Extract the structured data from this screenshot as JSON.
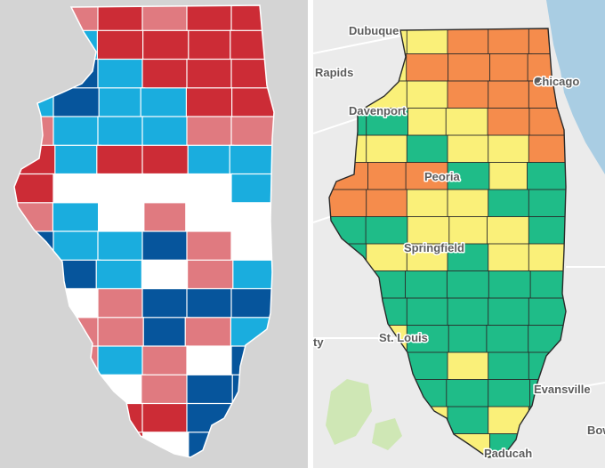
{
  "colors": {
    "panel_left_bg": "#d4d4d4",
    "panel_right_bg": "#ebebeb",
    "lake_michigan": "#a9cde3",
    "left_legend_categories": {
      "dark_red": "#cc2c36",
      "light_red": "#e07a80",
      "white": "#ffffff",
      "light_blue": "#1aadde",
      "dark_blue": "#06559c"
    },
    "right_levels": {
      "green": "#1fbc88",
      "yellow": "#faf079",
      "orange": "#f58c4c"
    }
  },
  "left_map": {
    "region": "Illinois",
    "counties": [
      {
        "fill": "dark_blue"
      },
      {
        "fill": "light_red"
      },
      {
        "fill": "dark_red"
      },
      {
        "fill": "light_red"
      },
      {
        "fill": "dark_red"
      },
      {
        "fill": "dark_red"
      },
      {
        "fill": "dark_blue"
      },
      {
        "fill": "light_blue"
      },
      {
        "fill": "dark_red"
      },
      {
        "fill": "dark_red"
      },
      {
        "fill": "dark_red"
      },
      {
        "fill": "dark_red"
      },
      {
        "fill": "white"
      },
      {
        "fill": "dark_blue"
      },
      {
        "fill": "light_blue"
      },
      {
        "fill": "dark_red"
      },
      {
        "fill": "dark_red"
      },
      {
        "fill": "dark_red"
      },
      {
        "fill": "light_blue"
      },
      {
        "fill": "dark_blue"
      },
      {
        "fill": "light_blue"
      },
      {
        "fill": "light_blue"
      },
      {
        "fill": "dark_red"
      },
      {
        "fill": "dark_red"
      },
      {
        "fill": "light_red"
      },
      {
        "fill": "light_blue"
      },
      {
        "fill": "light_blue"
      },
      {
        "fill": "light_blue"
      },
      {
        "fill": "light_red"
      },
      {
        "fill": "light_red"
      },
      {
        "fill": "dark_red"
      },
      {
        "fill": "light_blue"
      },
      {
        "fill": "dark_red"
      },
      {
        "fill": "dark_red"
      },
      {
        "fill": "light_blue"
      },
      {
        "fill": "light_blue"
      },
      {
        "fill": "dark_red"
      },
      {
        "fill": "white"
      },
      {
        "fill": "white"
      },
      {
        "fill": "white"
      },
      {
        "fill": "white"
      },
      {
        "fill": "light_blue"
      },
      {
        "fill": "light_red"
      },
      {
        "fill": "light_blue"
      },
      {
        "fill": "white"
      },
      {
        "fill": "light_red"
      },
      {
        "fill": "white"
      },
      {
        "fill": "white"
      },
      {
        "fill": "dark_blue"
      },
      {
        "fill": "light_blue"
      },
      {
        "fill": "light_blue"
      },
      {
        "fill": "dark_blue"
      },
      {
        "fill": "light_red"
      },
      {
        "fill": "white"
      },
      {
        "fill": "dark_blue"
      },
      {
        "fill": "dark_blue"
      },
      {
        "fill": "light_blue"
      },
      {
        "fill": "white"
      },
      {
        "fill": "light_red"
      },
      {
        "fill": "light_blue"
      },
      {
        "fill": "dark_red"
      },
      {
        "fill": "white"
      },
      {
        "fill": "light_red"
      },
      {
        "fill": "dark_blue"
      },
      {
        "fill": "dark_blue"
      },
      {
        "fill": "dark_blue"
      },
      {
        "fill": "light_blue"
      },
      {
        "fill": "light_red"
      },
      {
        "fill": "light_red"
      },
      {
        "fill": "dark_blue"
      },
      {
        "fill": "light_red"
      },
      {
        "fill": "light_blue"
      },
      {
        "fill": "white"
      },
      {
        "fill": "light_red"
      },
      {
        "fill": "light_blue"
      },
      {
        "fill": "light_red"
      },
      {
        "fill": "white"
      },
      {
        "fill": "dark_blue"
      },
      {
        "fill": "dark_red"
      },
      {
        "fill": "light_red"
      },
      {
        "fill": "white"
      },
      {
        "fill": "light_red"
      },
      {
        "fill": "dark_blue"
      },
      {
        "fill": "dark_blue"
      },
      {
        "fill": "white"
      },
      {
        "fill": "white"
      },
      {
        "fill": "dark_red"
      },
      {
        "fill": "dark_red"
      },
      {
        "fill": "dark_blue"
      },
      {
        "fill": "light_red"
      },
      {
        "fill": "white"
      },
      {
        "fill": "dark_red"
      },
      {
        "fill": "dark_red"
      },
      {
        "fill": "white"
      },
      {
        "fill": "dark_blue"
      },
      {
        "fill": "white"
      }
    ]
  },
  "right_map": {
    "region": "Illinois",
    "city_labels": {
      "dubuque": "Dubuque",
      "rapids": "Rapids",
      "davenport": "Davenport",
      "chicago": "Chicago",
      "peoria": "Peoria",
      "springfield": "Springfield",
      "ty": "ty",
      "st_louis": "St. Louis",
      "evansville": "Evansville",
      "paducah": "Paducah",
      "bow": "Bow"
    },
    "counties": [
      {
        "fill": "green"
      },
      {
        "fill": "yellow"
      },
      {
        "fill": "yellow"
      },
      {
        "fill": "orange"
      },
      {
        "fill": "orange"
      },
      {
        "fill": "orange"
      },
      {
        "fill": "green"
      },
      {
        "fill": "yellow"
      },
      {
        "fill": "orange"
      },
      {
        "fill": "orange"
      },
      {
        "fill": "orange"
      },
      {
        "fill": "orange"
      },
      {
        "fill": "yellow"
      },
      {
        "fill": "yellow"
      },
      {
        "fill": "yellow"
      },
      {
        "fill": "orange"
      },
      {
        "fill": "orange"
      },
      {
        "fill": "orange"
      },
      {
        "fill": "green"
      },
      {
        "fill": "green"
      },
      {
        "fill": "yellow"
      },
      {
        "fill": "yellow"
      },
      {
        "fill": "orange"
      },
      {
        "fill": "orange"
      },
      {
        "fill": "yellow"
      },
      {
        "fill": "yellow"
      },
      {
        "fill": "green"
      },
      {
        "fill": "yellow"
      },
      {
        "fill": "yellow"
      },
      {
        "fill": "orange"
      },
      {
        "fill": "orange"
      },
      {
        "fill": "orange"
      },
      {
        "fill": "orange"
      },
      {
        "fill": "green"
      },
      {
        "fill": "yellow"
      },
      {
        "fill": "green"
      },
      {
        "fill": "orange"
      },
      {
        "fill": "orange"
      },
      {
        "fill": "yellow"
      },
      {
        "fill": "yellow"
      },
      {
        "fill": "green"
      },
      {
        "fill": "green"
      },
      {
        "fill": "green"
      },
      {
        "fill": "green"
      },
      {
        "fill": "yellow"
      },
      {
        "fill": "yellow"
      },
      {
        "fill": "yellow"
      },
      {
        "fill": "green"
      },
      {
        "fill": "green"
      },
      {
        "fill": "yellow"
      },
      {
        "fill": "yellow"
      },
      {
        "fill": "green"
      },
      {
        "fill": "yellow"
      },
      {
        "fill": "yellow"
      },
      {
        "fill": "green"
      },
      {
        "fill": "green"
      },
      {
        "fill": "green"
      },
      {
        "fill": "green"
      },
      {
        "fill": "green"
      },
      {
        "fill": "green"
      },
      {
        "fill": "green"
      },
      {
        "fill": "green"
      },
      {
        "fill": "green"
      },
      {
        "fill": "green"
      },
      {
        "fill": "green"
      },
      {
        "fill": "green"
      },
      {
        "fill": "green"
      },
      {
        "fill": "yellow"
      },
      {
        "fill": "green"
      },
      {
        "fill": "green"
      },
      {
        "fill": "green"
      },
      {
        "fill": "green"
      },
      {
        "fill": "yellow"
      },
      {
        "fill": "yellow"
      },
      {
        "fill": "green"
      },
      {
        "fill": "yellow"
      },
      {
        "fill": "green"
      },
      {
        "fill": "green"
      },
      {
        "fill": "green"
      },
      {
        "fill": "yellow"
      },
      {
        "fill": "green"
      },
      {
        "fill": "green"
      },
      {
        "fill": "green"
      },
      {
        "fill": "green"
      },
      {
        "fill": "green"
      },
      {
        "fill": "green"
      },
      {
        "fill": "yellow"
      },
      {
        "fill": "green"
      },
      {
        "fill": "yellow"
      },
      {
        "fill": "green"
      },
      {
        "fill": "green"
      },
      {
        "fill": "green"
      },
      {
        "fill": "green"
      },
      {
        "fill": "yellow"
      },
      {
        "fill": "green"
      },
      {
        "fill": "green"
      }
    ]
  }
}
